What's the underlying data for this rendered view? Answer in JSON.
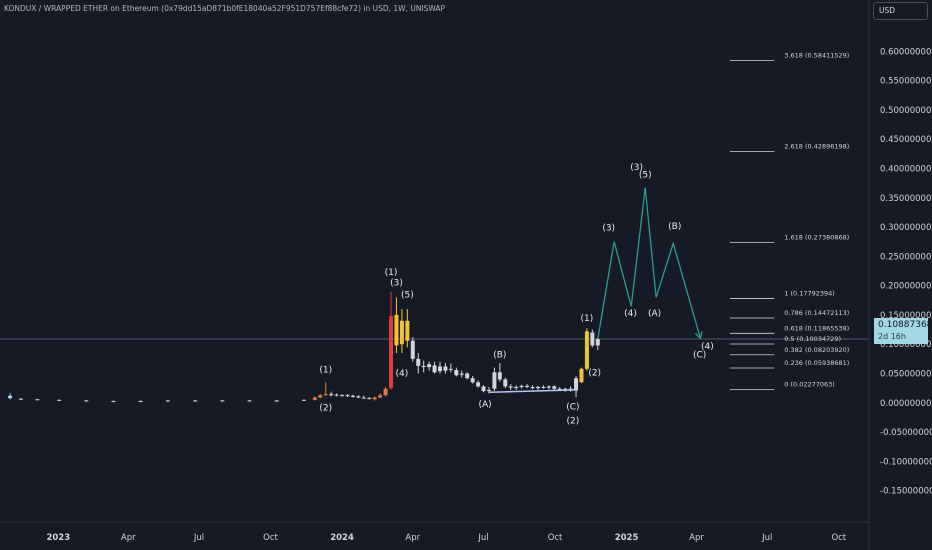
{
  "header": {
    "title": "KONDUX / WRAPPED ETHER on Ethereum (0x79dd15aD871b0fE18040a52F951D757Ef88cfe72) in USD, 1W, UNISWAP",
    "currency": "USD"
  },
  "price_badge": {
    "price": "0.10887368",
    "countdown": "2d 16h"
  },
  "chart_data": {
    "type": "candlestick",
    "x_range": [
      "2022-10-18",
      "2025-11-05"
    ],
    "ylim": [
      -0.2,
      0.65
    ],
    "current_price": 0.10887368,
    "y_ticks": [
      {
        "value": 0.6,
        "label": "0.60000000"
      },
      {
        "value": 0.55,
        "label": "0.55000000"
      },
      {
        "value": 0.5,
        "label": "0.50000000"
      },
      {
        "value": 0.45,
        "label": "0.45000000"
      },
      {
        "value": 0.4,
        "label": "0.40000000"
      },
      {
        "value": 0.35,
        "label": "0.35000000"
      },
      {
        "value": 0.3,
        "label": "0.30000000"
      },
      {
        "value": 0.25,
        "label": "0.25000000"
      },
      {
        "value": 0.2,
        "label": "0.20000000"
      },
      {
        "value": 0.15,
        "label": "0.15000000"
      },
      {
        "value": 0.1,
        "label": "0.10000000"
      },
      {
        "value": 0.05,
        "label": "0.05000000"
      },
      {
        "value": 0.0,
        "label": "0.00000000"
      },
      {
        "value": -0.05,
        "label": "-0.05000000"
      },
      {
        "value": -0.1,
        "label": "-0.10000000"
      },
      {
        "value": -0.15,
        "label": "-0.15000000"
      }
    ],
    "x_ticks": [
      {
        "date": "2023-01-01",
        "label": "2023",
        "bold": true
      },
      {
        "date": "2023-04-01",
        "label": "Apr"
      },
      {
        "date": "2023-07-01",
        "label": "Jul"
      },
      {
        "date": "2023-10-01",
        "label": "Oct"
      },
      {
        "date": "2024-01-01",
        "label": "2024",
        "bold": true
      },
      {
        "date": "2024-04-01",
        "label": "Apr"
      },
      {
        "date": "2024-07-01",
        "label": "Jul"
      },
      {
        "date": "2024-10-01",
        "label": "Oct"
      },
      {
        "date": "2025-01-01",
        "label": "2025",
        "bold": true
      },
      {
        "date": "2025-04-01",
        "label": "Apr"
      },
      {
        "date": "2025-07-01",
        "label": "Jul"
      },
      {
        "date": "2025-10-01",
        "label": "Oct"
      }
    ],
    "candles": [
      {
        "t": "2022-10-31",
        "o": 0.008,
        "h": 0.016,
        "l": 0.006,
        "c": 0.012,
        "color": "#a5dde6"
      },
      {
        "t": "2022-11-14",
        "o": 0.007,
        "h": 0.008,
        "l": 0.006,
        "c": 0.007
      },
      {
        "t": "2022-12-05",
        "o": 0.006,
        "h": 0.007,
        "l": 0.005,
        "c": 0.006
      },
      {
        "t": "2023-01-02",
        "o": 0.005,
        "h": 0.006,
        "l": 0.004,
        "c": 0.005
      },
      {
        "t": "2023-02-06",
        "o": 0.004,
        "h": 0.005,
        "l": 0.003,
        "c": 0.004
      },
      {
        "t": "2023-03-13",
        "o": 0.003,
        "h": 0.004,
        "l": 0.002,
        "c": 0.003
      },
      {
        "t": "2023-04-17",
        "o": 0.003,
        "h": 0.004,
        "l": 0.002,
        "c": 0.003
      },
      {
        "t": "2023-05-22",
        "o": 0.003,
        "h": 0.005,
        "l": 0.002,
        "c": 0.004
      },
      {
        "t": "2023-06-26",
        "o": 0.004,
        "h": 0.005,
        "l": 0.003,
        "c": 0.004
      },
      {
        "t": "2023-07-31",
        "o": 0.004,
        "h": 0.005,
        "l": 0.003,
        "c": 0.004
      },
      {
        "t": "2023-09-04",
        "o": 0.004,
        "h": 0.005,
        "l": 0.003,
        "c": 0.004
      },
      {
        "t": "2023-10-09",
        "o": 0.003,
        "h": 0.005,
        "l": 0.002,
        "c": 0.004
      },
      {
        "t": "2023-11-13",
        "o": 0.004,
        "h": 0.006,
        "l": 0.003,
        "c": 0.005
      },
      {
        "t": "2023-11-27",
        "o": 0.005,
        "h": 0.011,
        "l": 0.004,
        "c": 0.009,
        "color": "#e07a4a"
      },
      {
        "t": "2023-12-04",
        "o": 0.009,
        "h": 0.015,
        "l": 0.008,
        "c": 0.013,
        "color": "#e07a4a"
      },
      {
        "t": "2023-12-11",
        "o": 0.014,
        "h": 0.035,
        "l": 0.012,
        "c": 0.015,
        "color": "#e07a4a"
      },
      {
        "t": "2023-12-18",
        "o": 0.015,
        "h": 0.019,
        "l": 0.011,
        "c": 0.013
      },
      {
        "t": "2023-12-25",
        "o": 0.013,
        "h": 0.016,
        "l": 0.011,
        "c": 0.014
      },
      {
        "t": "2024-01-01",
        "o": 0.013,
        "h": 0.015,
        "l": 0.011,
        "c": 0.013
      },
      {
        "t": "2024-01-08",
        "o": 0.013,
        "h": 0.015,
        "l": 0.01,
        "c": 0.012
      },
      {
        "t": "2024-01-15",
        "o": 0.012,
        "h": 0.014,
        "l": 0.009,
        "c": 0.01
      },
      {
        "t": "2024-01-22",
        "o": 0.011,
        "h": 0.013,
        "l": 0.008,
        "c": 0.009
      },
      {
        "t": "2024-01-29",
        "o": 0.009,
        "h": 0.012,
        "l": 0.007,
        "c": 0.008
      },
      {
        "t": "2024-02-05",
        "o": 0.008,
        "h": 0.01,
        "l": 0.006,
        "c": 0.007
      },
      {
        "t": "2024-02-12",
        "o": 0.006,
        "h": 0.011,
        "l": 0.004,
        "c": 0.009,
        "color": "#e07a4a"
      },
      {
        "t": "2024-02-19",
        "o": 0.009,
        "h": 0.016,
        "l": 0.008,
        "c": 0.013,
        "color": "#e07a4a"
      },
      {
        "t": "2024-02-26",
        "o": 0.013,
        "h": 0.027,
        "l": 0.011,
        "c": 0.024,
        "color": "#e07a4a"
      },
      {
        "t": "2024-03-04",
        "o": 0.025,
        "h": 0.19,
        "l": 0.022,
        "c": 0.148,
        "color": "#e03b3b"
      },
      {
        "t": "2024-03-11",
        "o": 0.15,
        "h": 0.18,
        "l": 0.085,
        "c": 0.098,
        "color": "#f0c43a"
      },
      {
        "t": "2024-03-18",
        "o": 0.1,
        "h": 0.16,
        "l": 0.085,
        "c": 0.14,
        "color": "#f0c43a"
      },
      {
        "t": "2024-03-25",
        "o": 0.14,
        "h": 0.16,
        "l": 0.095,
        "c": 0.106,
        "color": "#f0c43a"
      },
      {
        "t": "2024-04-01",
        "o": 0.106,
        "h": 0.112,
        "l": 0.07,
        "c": 0.075
      },
      {
        "t": "2024-04-08",
        "o": 0.075,
        "h": 0.085,
        "l": 0.05,
        "c": 0.063
      },
      {
        "t": "2024-04-15",
        "o": 0.063,
        "h": 0.072,
        "l": 0.052,
        "c": 0.061
      },
      {
        "t": "2024-04-22",
        "o": 0.061,
        "h": 0.07,
        "l": 0.055,
        "c": 0.066
      },
      {
        "t": "2024-04-29",
        "o": 0.064,
        "h": 0.07,
        "l": 0.05,
        "c": 0.052
      },
      {
        "t": "2024-05-06",
        "o": 0.054,
        "h": 0.07,
        "l": 0.05,
        "c": 0.062
      },
      {
        "t": "2024-05-13",
        "o": 0.062,
        "h": 0.068,
        "l": 0.05,
        "c": 0.055
      },
      {
        "t": "2024-05-20",
        "o": 0.057,
        "h": 0.067,
        "l": 0.052,
        "c": 0.058
      },
      {
        "t": "2024-05-27",
        "o": 0.056,
        "h": 0.06,
        "l": 0.045,
        "c": 0.047
      },
      {
        "t": "2024-06-03",
        "o": 0.048,
        "h": 0.055,
        "l": 0.043,
        "c": 0.05
      },
      {
        "t": "2024-06-10",
        "o": 0.05,
        "h": 0.052,
        "l": 0.04,
        "c": 0.042
      },
      {
        "t": "2024-06-17",
        "o": 0.042,
        "h": 0.046,
        "l": 0.033,
        "c": 0.035
      },
      {
        "t": "2024-06-24",
        "o": 0.035,
        "h": 0.038,
        "l": 0.026,
        "c": 0.028
      },
      {
        "t": "2024-07-01",
        "o": 0.028,
        "h": 0.03,
        "l": 0.018,
        "c": 0.02
      },
      {
        "t": "2024-07-08",
        "o": 0.02,
        "h": 0.027,
        "l": 0.016,
        "c": 0.022
      },
      {
        "t": "2024-07-15",
        "o": 0.024,
        "h": 0.06,
        "l": 0.02,
        "c": 0.052
      },
      {
        "t": "2024-07-22",
        "o": 0.052,
        "h": 0.068,
        "l": 0.036,
        "c": 0.04
      },
      {
        "t": "2024-07-29",
        "o": 0.04,
        "h": 0.043,
        "l": 0.025,
        "c": 0.028
      },
      {
        "t": "2024-08-05",
        "o": 0.028,
        "h": 0.032,
        "l": 0.022,
        "c": 0.026
      },
      {
        "t": "2024-08-12",
        "o": 0.026,
        "h": 0.03,
        "l": 0.022,
        "c": 0.027
      },
      {
        "t": "2024-08-19",
        "o": 0.027,
        "h": 0.031,
        "l": 0.024,
        "c": 0.029
      },
      {
        "t": "2024-08-26",
        "o": 0.029,
        "h": 0.032,
        "l": 0.025,
        "c": 0.027
      },
      {
        "t": "2024-09-02",
        "o": 0.027,
        "h": 0.03,
        "l": 0.023,
        "c": 0.025
      },
      {
        "t": "2024-09-09",
        "o": 0.025,
        "h": 0.029,
        "l": 0.022,
        "c": 0.027
      },
      {
        "t": "2024-09-16",
        "o": 0.027,
        "h": 0.03,
        "l": 0.024,
        "c": 0.026
      },
      {
        "t": "2024-09-23",
        "o": 0.026,
        "h": 0.03,
        "l": 0.023,
        "c": 0.028
      },
      {
        "t": "2024-09-30",
        "o": 0.028,
        "h": 0.03,
        "l": 0.022,
        "c": 0.024
      },
      {
        "t": "2024-10-07",
        "o": 0.024,
        "h": 0.027,
        "l": 0.02,
        "c": 0.022
      },
      {
        "t": "2024-10-14",
        "o": 0.022,
        "h": 0.026,
        "l": 0.019,
        "c": 0.024
      },
      {
        "t": "2024-10-21",
        "o": 0.024,
        "h": 0.028,
        "l": 0.019,
        "c": 0.021
      },
      {
        "t": "2024-10-28",
        "o": 0.021,
        "h": 0.046,
        "l": 0.01,
        "c": 0.042
      },
      {
        "t": "2024-11-04",
        "o": 0.035,
        "h": 0.06,
        "l": 0.034,
        "c": 0.058,
        "color": "#f0c43a"
      },
      {
        "t": "2024-11-11",
        "o": 0.058,
        "h": 0.127,
        "l": 0.055,
        "c": 0.122,
        "color": "#f0c43a"
      },
      {
        "t": "2024-11-18",
        "o": 0.12,
        "h": 0.125,
        "l": 0.095,
        "c": 0.098
      },
      {
        "t": "2024-11-25",
        "o": 0.098,
        "h": 0.112,
        "l": 0.09,
        "c": 0.109
      }
    ],
    "fib_levels": [
      {
        "ratio": "0",
        "value": 0.02277063,
        "label": "0 (0.02277063)"
      },
      {
        "ratio": "0.236",
        "value": 0.05938681,
        "label": "0.236 (0.05938681)"
      },
      {
        "ratio": "0.382",
        "value": 0.0820392,
        "label": "0.382 (0.08203920)"
      },
      {
        "ratio": "0.5",
        "value": 0.10034729,
        "label": "0.5 (0.10034729)"
      },
      {
        "ratio": "0.618",
        "value": 0.11865538,
        "label": "0.618 (0.11865538)"
      },
      {
        "ratio": "0.786",
        "value": 0.14472113,
        "label": "0.786 (0.14472113)"
      },
      {
        "ratio": "1",
        "value": 0.17792394,
        "label": "1 (0.17792394)"
      },
      {
        "ratio": "1.618",
        "value": 0.27380868,
        "label": "1.618 (0.27380868)"
      },
      {
        "ratio": "2.618",
        "value": 0.42896198,
        "label": "2.618 (0.42896198)"
      },
      {
        "ratio": "3.618",
        "value": 0.58411529,
        "label": "3.618 (0.58411529)"
      }
    ],
    "fib_range": [
      "2025-05-14",
      "2025-07-10"
    ],
    "support_line": [
      {
        "t": "2024-07-08",
        "v": 0.018
      },
      {
        "t": "2024-10-28",
        "v": 0.022
      }
    ],
    "projection_path": [
      {
        "t": "2024-11-25",
        "v": 0.109
      },
      {
        "t": "2024-12-16",
        "v": 0.275
      },
      {
        "t": "2025-01-07",
        "v": 0.165
      },
      {
        "t": "2025-01-25",
        "v": 0.367
      },
      {
        "t": "2025-02-08",
        "v": 0.18
      },
      {
        "t": "2025-03-02",
        "v": 0.272
      },
      {
        "t": "2025-04-06",
        "v": 0.11
      }
    ],
    "annotations": [
      {
        "t": "2023-12-11",
        "v": 0.052,
        "text": "(1)"
      },
      {
        "t": "2023-12-11",
        "v": -0.013,
        "text": "(2)"
      },
      {
        "t": "2024-03-04",
        "v": 0.218,
        "text": "(1)"
      },
      {
        "t": "2024-03-11",
        "v": 0.2,
        "text": "(3)"
      },
      {
        "t": "2024-03-18",
        "v": 0.046,
        "text": "(4)"
      },
      {
        "t": "2024-03-25",
        "v": 0.18,
        "text": "(5)"
      },
      {
        "t": "2024-07-22",
        "v": 0.077,
        "text": "(B)"
      },
      {
        "t": "2024-07-03",
        "v": -0.007,
        "text": "(A)"
      },
      {
        "t": "2024-10-24",
        "v": -0.011,
        "text": "(C)"
      },
      {
        "t": "2024-10-24",
        "v": -0.035,
        "text": "(2)"
      },
      {
        "t": "2024-11-11",
        "v": 0.14,
        "text": "(1)"
      },
      {
        "t": "2024-11-21",
        "v": 0.047,
        "text": "(2)"
      },
      {
        "t": "2024-12-09",
        "v": 0.294,
        "text": "(3)"
      },
      {
        "t": "2025-01-06",
        "v": 0.148,
        "text": "(4)"
      },
      {
        "t": "2025-01-14",
        "v": 0.397,
        "text": "(3)"
      },
      {
        "t": "2025-01-25",
        "v": 0.385,
        "text": "(5)"
      },
      {
        "t": "2025-02-06",
        "v": 0.148,
        "text": "(A)"
      },
      {
        "t": "2025-03-04",
        "v": 0.297,
        "text": "(B)"
      },
      {
        "t": "2025-04-05",
        "v": 0.077,
        "text": "(C)"
      },
      {
        "t": "2025-04-15",
        "v": 0.092,
        "text": "(4)"
      }
    ],
    "colors": {
      "background": "#161a25",
      "candle_default": "#d1d4dc",
      "projection": "#2a9d8f",
      "support": "#b7c4f0",
      "fib": "#d1d4dc",
      "axis_text": "#d1d4dc",
      "grid": "#1f2430"
    }
  }
}
